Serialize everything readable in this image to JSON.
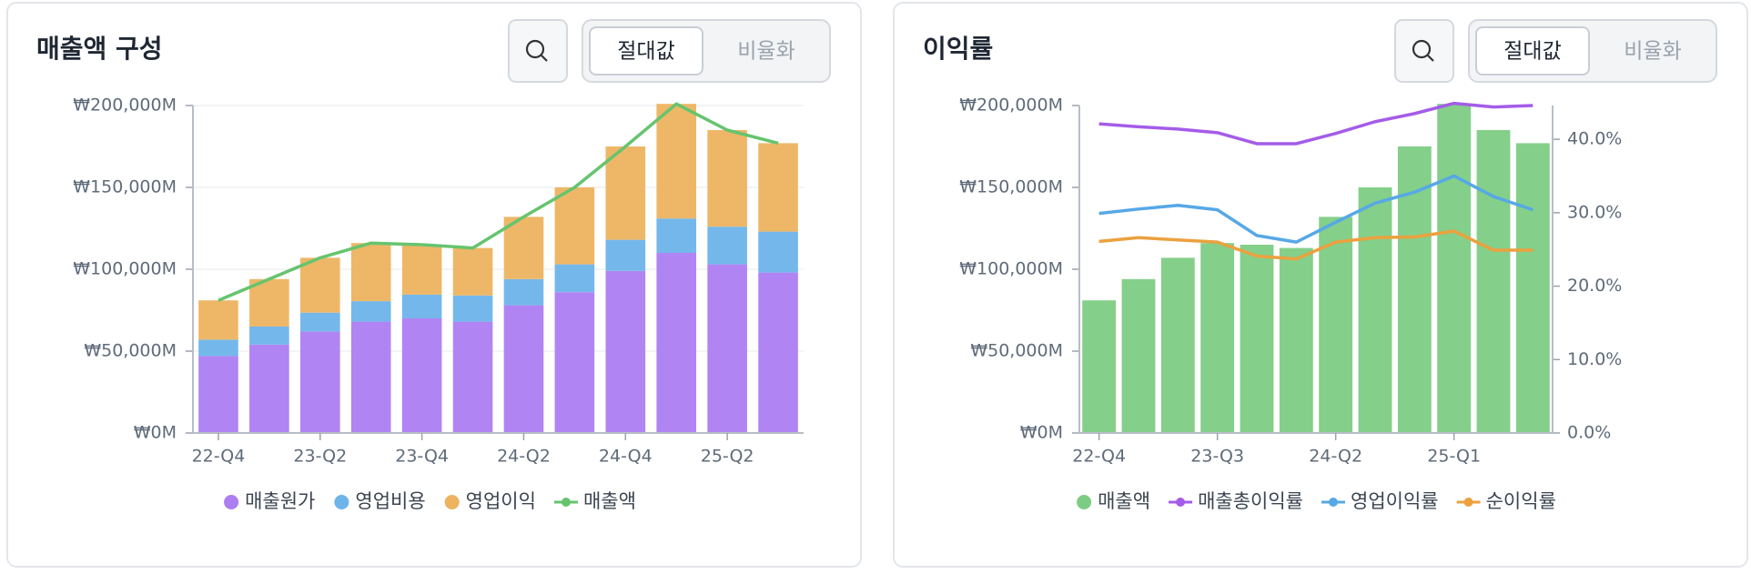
{
  "panels": [
    {
      "toggle": [
        "절대값",
        "비율화"
      ]
    },
    {
      "toggle": [
        "절대값",
        "비율화"
      ]
    }
  ],
  "chart_data": [
    {
      "type": "combo",
      "title": "매출액 구성",
      "categories": [
        "22-Q4",
        null,
        "23-Q2",
        null,
        "23-Q4",
        null,
        "24-Q2",
        null,
        "24-Q4",
        null,
        "25-Q2",
        null
      ],
      "ylim": [
        0,
        200000
      ],
      "yticks": [
        {
          "value": 0,
          "label": "₩0M"
        },
        {
          "value": 50000,
          "label": "₩50,000M"
        },
        {
          "value": 100000,
          "label": "₩100,000M"
        },
        {
          "value": 150000,
          "label": "₩150,000M"
        },
        {
          "value": 200000,
          "label": "₩200,000M"
        }
      ],
      "grid": true,
      "stacked": true,
      "series": [
        {
          "name": "매출원가",
          "type": "bar",
          "color": "#ad7df2",
          "values": [
            47000,
            54000,
            62000,
            68000,
            70000,
            68000,
            78000,
            86000,
            99000,
            110000,
            103000,
            98000
          ]
        },
        {
          "name": "영업비용",
          "type": "bar",
          "color": "#6db4ea",
          "values": [
            10000,
            11000,
            11500,
            12500,
            14500,
            16000,
            16000,
            17000,
            19000,
            21000,
            23000,
            25000
          ]
        },
        {
          "name": "영업이익",
          "type": "bar",
          "color": "#edb35f",
          "values": [
            24000,
            29000,
            33500,
            35500,
            30500,
            29000,
            38000,
            47000,
            57000,
            70000,
            59000,
            54000
          ]
        },
        {
          "name": "매출액",
          "type": "line",
          "color": "#66c46e",
          "values": [
            81000,
            94000,
            107000,
            116000,
            115000,
            113000,
            132000,
            150000,
            175000,
            201000,
            185000,
            177000
          ]
        }
      ]
    },
    {
      "type": "combo",
      "title": "이익률",
      "categories": [
        "22-Q4",
        null,
        null,
        "23-Q3",
        null,
        null,
        "24-Q2",
        null,
        null,
        "25-Q1",
        null,
        null
      ],
      "ylim": [
        0,
        200000
      ],
      "yticks": [
        {
          "value": 0,
          "label": "₩0M"
        },
        {
          "value": 50000,
          "label": "₩50,000M"
        },
        {
          "value": 100000,
          "label": "₩100,000M"
        },
        {
          "value": 150000,
          "label": "₩150,000M"
        },
        {
          "value": 200000,
          "label": "₩200,000M"
        }
      ],
      "y2lim": [
        0,
        44.6
      ],
      "y2ticks": [
        {
          "value": 0,
          "label": "0.0%"
        },
        {
          "value": 10,
          "label": "10.0%"
        },
        {
          "value": 20,
          "label": "20.0%"
        },
        {
          "value": 30,
          "label": "30.0%"
        },
        {
          "value": 40,
          "label": "40.0%"
        }
      ],
      "grid": false,
      "stacked": false,
      "series": [
        {
          "name": "매출액",
          "type": "bar",
          "color": "#7dcc84",
          "values": [
            81000,
            94000,
            107000,
            116000,
            115000,
            113000,
            132000,
            150000,
            175000,
            201000,
            185000,
            177000
          ]
        },
        {
          "name": "매출총이익률",
          "type": "line",
          "axis": "y2",
          "color": "#a45ce8",
          "values": [
            42.1,
            41.7,
            41.4,
            40.9,
            39.4,
            39.4,
            40.8,
            42.4,
            43.5,
            44.9,
            44.4,
            44.6
          ]
        },
        {
          "name": "영업이익률",
          "type": "line",
          "axis": "y2",
          "color": "#56a8e6",
          "values": [
            29.9,
            30.5,
            31.0,
            30.4,
            26.9,
            26.0,
            28.7,
            31.3,
            32.8,
            35.0,
            32.2,
            30.4
          ]
        },
        {
          "name": "순이익률",
          "type": "line",
          "axis": "y2",
          "color": "#eba13e",
          "values": [
            26.1,
            26.6,
            26.3,
            26.0,
            24.1,
            23.7,
            26.0,
            26.6,
            26.7,
            27.5,
            24.9,
            24.9
          ]
        }
      ]
    }
  ]
}
